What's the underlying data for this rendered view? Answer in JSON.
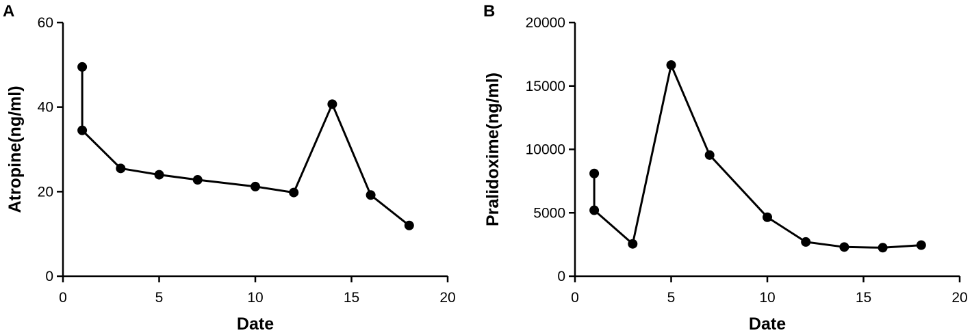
{
  "chart_data": [
    {
      "type": "line",
      "panel_label": "A",
      "xlabel": "Date",
      "ylabel": "Atropine(ng/ml)",
      "xlim": [
        0,
        20
      ],
      "ylim": [
        0,
        60
      ],
      "xticks": [
        0,
        5,
        10,
        15,
        20
      ],
      "yticks": [
        0,
        20,
        40,
        60
      ],
      "grid": false,
      "series": [
        {
          "x": [
            1,
            1,
            3,
            5,
            7,
            10,
            12,
            14,
            16,
            18
          ],
          "y": [
            49.5,
            34.5,
            25.5,
            24,
            22.8,
            21.2,
            19.8,
            40.7,
            19.2,
            12
          ]
        }
      ]
    },
    {
      "type": "line",
      "panel_label": "B",
      "xlabel": "Date",
      "ylabel": "Pralidoxime(ng/ml)",
      "xlim": [
        0,
        20
      ],
      "ylim": [
        0,
        20000
      ],
      "xticks": [
        0,
        5,
        10,
        15,
        20
      ],
      "yticks": [
        0,
        5000,
        10000,
        15000,
        20000
      ],
      "grid": false,
      "series": [
        {
          "x": [
            1,
            1,
            3,
            5,
            7,
            10,
            12,
            14,
            16,
            18
          ],
          "y": [
            8100,
            5200,
            2550,
            16650,
            9550,
            4650,
            2700,
            2300,
            2250,
            2450
          ]
        }
      ]
    }
  ]
}
